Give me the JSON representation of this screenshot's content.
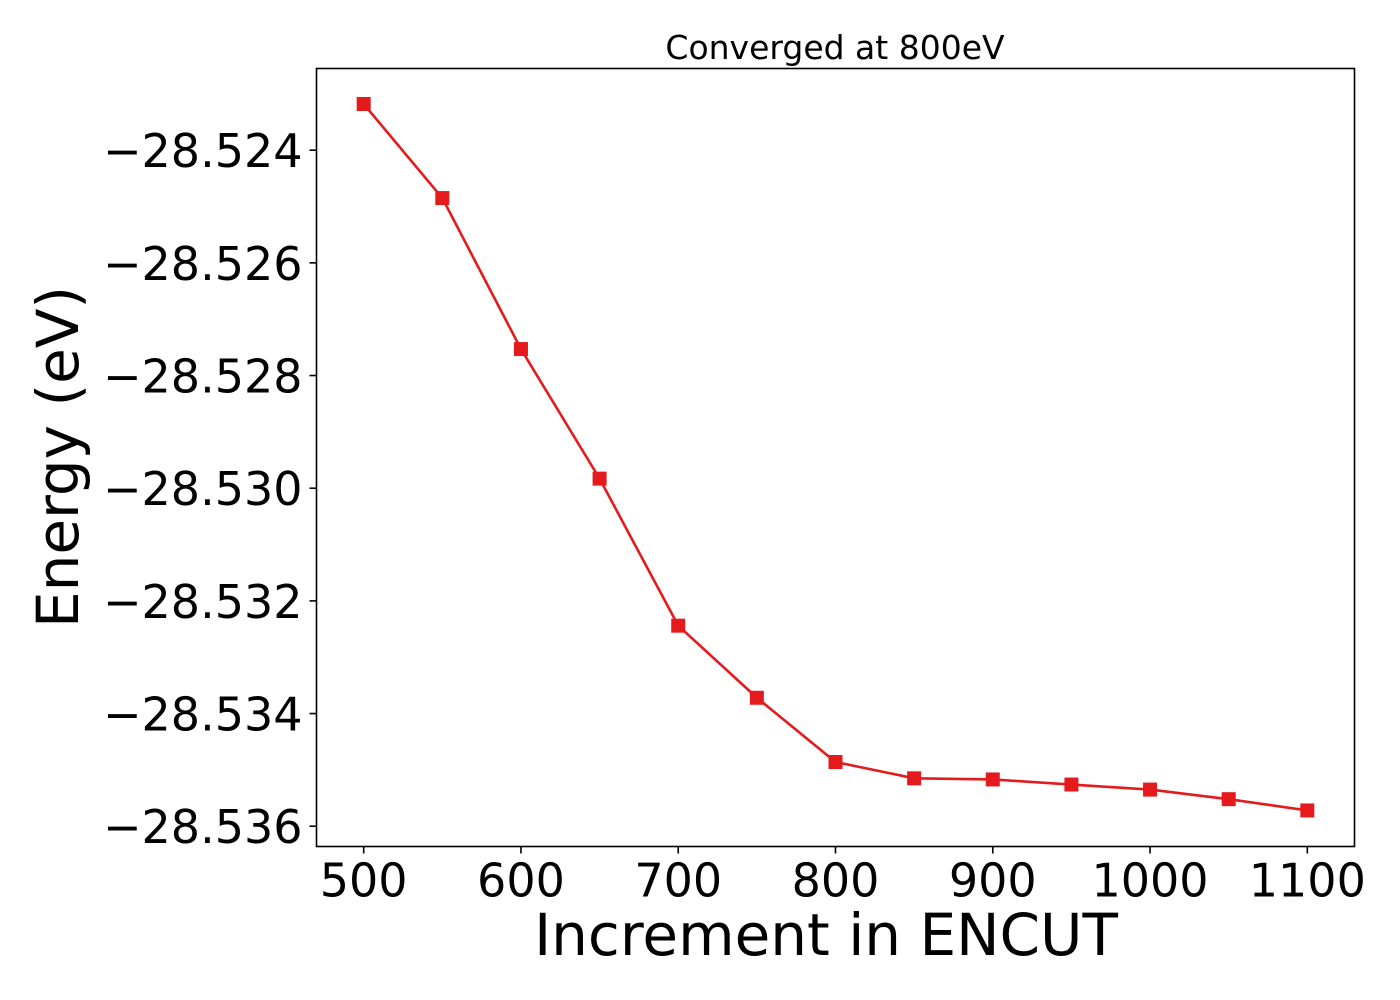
{
  "chart_data": {
    "type": "line",
    "title": "Converged at 800eV",
    "xlabel": "Increment in ENCUT",
    "ylabel": "Energy (eV)",
    "xlim": [
      470,
      1130
    ],
    "ylim": [
      -28.53636,
      -28.52255
    ],
    "x_ticks": [
      500,
      600,
      700,
      800,
      900,
      1000,
      1100
    ],
    "x_tick_labels": [
      "500",
      "600",
      "700",
      "800",
      "900",
      "1000",
      "1100"
    ],
    "y_ticks": [
      -28.524,
      -28.526,
      -28.528,
      -28.53,
      -28.532,
      -28.534,
      -28.536
    ],
    "y_tick_labels": [
      "−28.524",
      "−28.526",
      "−28.528",
      "−28.530",
      "−28.532",
      "−28.534",
      "−28.536"
    ],
    "grid": false,
    "legend": null,
    "series": [
      {
        "name": "Energy",
        "color": "#e41a1c",
        "marker": "square",
        "x": [
          500,
          550,
          600,
          650,
          700,
          750,
          800,
          850,
          900,
          950,
          1000,
          1050,
          1100
        ],
        "y": [
          -28.52318,
          -28.52485,
          -28.52753,
          -28.52983,
          -28.53244,
          -28.53372,
          -28.53486,
          -28.53515,
          -28.53517,
          -28.53526,
          -28.53535,
          -28.53552,
          -28.53572
        ]
      }
    ]
  }
}
